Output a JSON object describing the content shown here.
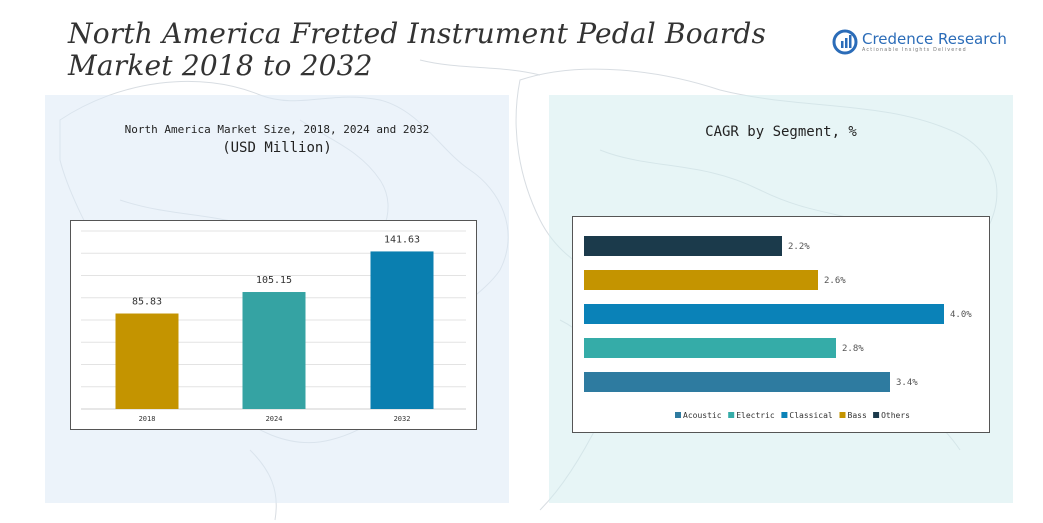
{
  "title": "North America Fretted Instrument Pedal Boards Market 2018 to 2032",
  "logo": {
    "name": "Credence Research",
    "tagline": "Actionable Insights Delivered"
  },
  "left_panel": {
    "subtitle": "North America Market Size, 2018, 2024 and 2032",
    "unit": "(USD Million)"
  },
  "right_panel": {
    "title": "CAGR by Segment, %"
  },
  "chart_data": [
    {
      "type": "bar",
      "categories": [
        "2018",
        "2024",
        "2032"
      ],
      "values": [
        85.83,
        105.15,
        141.63
      ],
      "colors": [
        "#C49400",
        "#35A3A3",
        "#0A7FB0"
      ],
      "title": "North America Market Size, 2018, 2024 and 2032",
      "ylabel": "(USD Million)",
      "ylim": [
        0,
        160
      ],
      "grid": true
    },
    {
      "type": "bar",
      "orientation": "horizontal",
      "categories": [
        "Acoustic",
        "Electric",
        "Classical",
        "Bass",
        "Others"
      ],
      "values": [
        3.4,
        2.8,
        4.0,
        2.6,
        2.2
      ],
      "labels": [
        "3.4%",
        "2.8%",
        "4.0%",
        "2.6%",
        "2.2%"
      ],
      "colors": [
        "#2E7BA0",
        "#35ACA8",
        "#0A82B8",
        "#C49400",
        "#1B3A4B"
      ],
      "title": "CAGR by Segment, %",
      "legend": "bottom",
      "xlim": [
        0,
        4.2
      ]
    }
  ]
}
